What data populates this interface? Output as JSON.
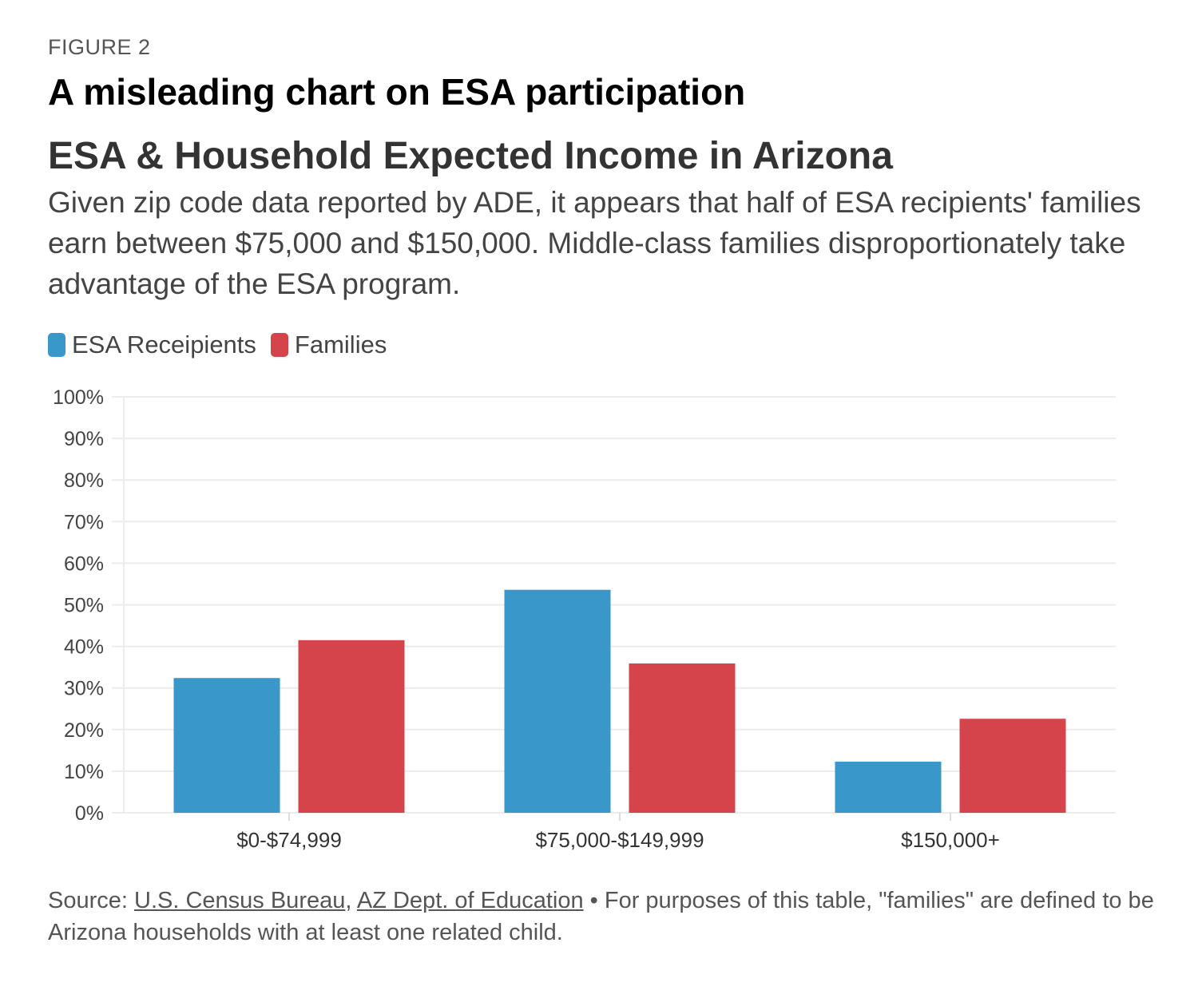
{
  "figure_label": "FIGURE 2",
  "heading": "A misleading chart on ESA participation",
  "chart_data": {
    "type": "bar",
    "title": "ESA & Household Expected Income in Arizona",
    "subtitle": "Given zip code data reported by ADE, it appears that half of ESA recipients' families earn between $75,000 and $150,000. Middle-class families disproportionately take advantage of the ESA program.",
    "categories": [
      "$0-$74,999",
      "$75,000-$149,999",
      "$150,000+"
    ],
    "series": [
      {
        "name": "ESA Receipients",
        "color": "#3a97c9",
        "values": [
          32.4,
          53.6,
          12.3
        ]
      },
      {
        "name": "Families",
        "color": "#d6444b",
        "values": [
          41.5,
          35.9,
          22.6
        ]
      }
    ],
    "ylim": [
      0,
      100
    ],
    "yticks": [
      "0%",
      "10%",
      "20%",
      "30%",
      "40%",
      "50%",
      "60%",
      "70%",
      "80%",
      "90%",
      "100%"
    ],
    "grid": true,
    "legend": "top-left",
    "xlabel": "",
    "ylabel": ""
  },
  "source": {
    "prefix": "Source: ",
    "link1": "U.S. Census Bureau",
    "sep": ", ",
    "link2": "AZ Dept. of Education",
    "note": " • For purposes of this table, \"families\" are defined to be Arizona households with at least one related child."
  }
}
